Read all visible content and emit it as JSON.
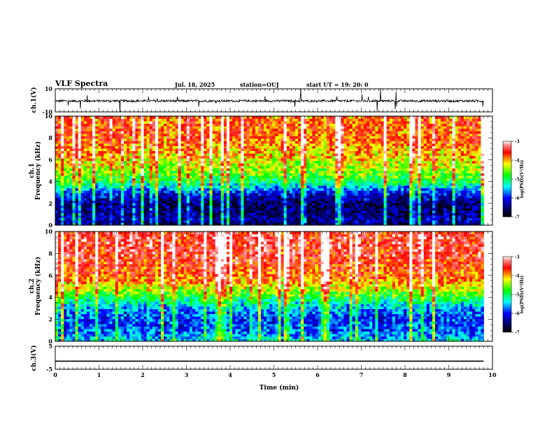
{
  "header": {
    "title": "VLF Spectra",
    "date": "Jul. 18, 2025",
    "station": "station=OUJ",
    "start": "start UT =  19: 20: 0"
  },
  "panels": {
    "ch1_ylabel": "ch.1(V)",
    "ch1_spec_ylabel": "ch.1\nFrequency (kHz)",
    "ch2_spec_ylabel": "ch.2\nFrequency (kHz)",
    "ch3_ylabel": "ch.3(V)",
    "xlabel": "Time (min)",
    "colorbar_label": "log(PSD)(V²/Hz)"
  },
  "chart_data": [
    {
      "type": "line",
      "name": "ch1-waveform",
      "ylabel": "ch.1(V)",
      "xlim": [
        0,
        10
      ],
      "ylim": [
        -10,
        10
      ],
      "yticks": [
        -10,
        10
      ],
      "data_extent_x": [
        0,
        9.8
      ],
      "approx_baseline": -0.5,
      "approx_noise_amplitude": 2,
      "color": "#000000"
    },
    {
      "type": "heatmap",
      "name": "ch1-spectrogram",
      "ylabel": "Frequency (kHz)",
      "panel_label": "ch.1",
      "xlim": [
        0,
        10
      ],
      "ylim": [
        0,
        10
      ],
      "yticks": [
        0,
        2,
        4,
        6,
        8,
        10
      ],
      "data_extent_x": [
        0,
        9.8
      ],
      "colorbar": {
        "label": "log(PSD)(V²/Hz)",
        "range": [
          -7,
          -3
        ],
        "ticks": [
          -7,
          -6,
          -5,
          -4,
          -3
        ]
      },
      "approx_level_by_freq_khz": [
        [
          0,
          -6.6
        ],
        [
          0.5,
          -6.3
        ],
        [
          1,
          -6.5
        ],
        [
          2,
          -6.6
        ],
        [
          3,
          -6.0
        ],
        [
          3.5,
          -5.5
        ],
        [
          4,
          -5.0
        ],
        [
          5,
          -4.5
        ],
        [
          6,
          -4.2
        ],
        [
          8,
          -3.8
        ],
        [
          10,
          -3.8
        ]
      ]
    },
    {
      "type": "heatmap",
      "name": "ch2-spectrogram",
      "ylabel": "Frequency (kHz)",
      "panel_label": "ch.2",
      "xlim": [
        0,
        10
      ],
      "ylim": [
        0,
        10
      ],
      "yticks": [
        0,
        2,
        4,
        6,
        8,
        10
      ],
      "data_extent_x": [
        0,
        9.8
      ],
      "colorbar": {
        "label": "log(PSD)(V²/Hz)",
        "range": [
          -7,
          -3
        ],
        "ticks": [
          -7,
          -6,
          -5,
          -4,
          -3
        ]
      },
      "approx_level_by_freq_khz": [
        [
          0,
          -5.4
        ],
        [
          1,
          -5.8
        ],
        [
          2,
          -5.9
        ],
        [
          3,
          -5.6
        ],
        [
          4,
          -4.9
        ],
        [
          5,
          -4.2
        ],
        [
          6,
          -3.8
        ],
        [
          8,
          -3.5
        ],
        [
          10,
          -3.5
        ]
      ]
    },
    {
      "type": "line",
      "name": "ch3-waveform",
      "ylabel": "ch.3(V)",
      "xlim": [
        0,
        10
      ],
      "ylim": [
        -5,
        5
      ],
      "yticks": [
        -5,
        5
      ],
      "data_extent_x": [
        0,
        9.8
      ],
      "approx_value": -1.5,
      "color": "#000000"
    }
  ],
  "xaxis": {
    "label": "Time (min)",
    "range": [
      0,
      10
    ],
    "ticks": [
      "0",
      "1",
      "2",
      "3",
      "4",
      "5",
      "6",
      "7",
      "8",
      "9",
      "10"
    ]
  },
  "colorbar_ticks": [
    "-3",
    "-4",
    "-5",
    "-6",
    "-7"
  ]
}
